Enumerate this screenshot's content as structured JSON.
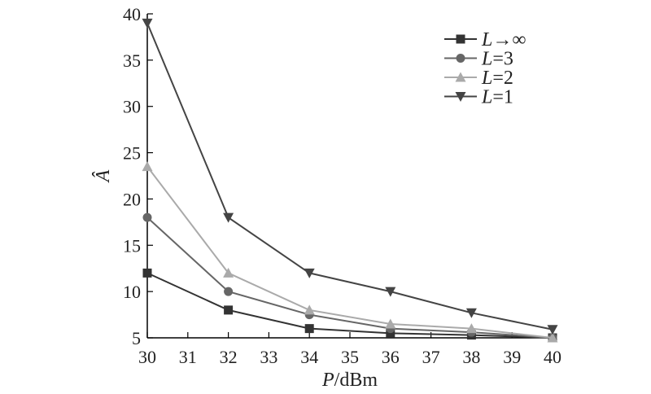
{
  "chart_data": {
    "type": "line",
    "x": [
      30,
      32,
      34,
      36,
      38,
      40
    ],
    "xlabel_var": "P",
    "xlabel_unit": "/dBm",
    "ylabel": "Â",
    "xlim": [
      30,
      40
    ],
    "ylim": [
      5,
      40
    ],
    "xticks": [
      30,
      31,
      32,
      33,
      34,
      35,
      36,
      37,
      38,
      39,
      40
    ],
    "yticks": [
      5,
      10,
      15,
      20,
      25,
      30,
      35,
      40
    ],
    "grid": false,
    "legend_position": "top-right",
    "series": [
      {
        "name": "L→∞",
        "legend_var": "L",
        "legend_rest": "→∞",
        "marker": "square",
        "color": "#333333",
        "values": [
          12,
          8,
          6,
          5.5,
          5.3,
          5
        ]
      },
      {
        "name": "L=3",
        "legend_var": "L",
        "legend_rest": "=3",
        "marker": "circle",
        "color": "#666666",
        "values": [
          18,
          10,
          7.5,
          6,
          5.6,
          5
        ]
      },
      {
        "name": "L=2",
        "legend_var": "L",
        "legend_rest": "=2",
        "marker": "triangle-up",
        "color": "#aaaaaa",
        "values": [
          23.5,
          12,
          8,
          6.5,
          6,
          5
        ]
      },
      {
        "name": "L=1",
        "legend_var": "L",
        "legend_rest": "=1",
        "marker": "triangle-down",
        "color": "#444444",
        "values": [
          39,
          18,
          12,
          10,
          7.7,
          5.9
        ]
      }
    ]
  }
}
